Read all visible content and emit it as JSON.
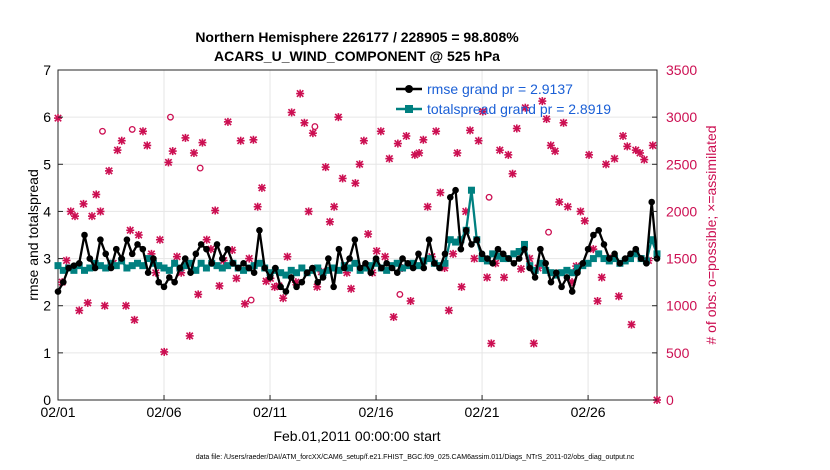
{
  "chart_data": {
    "type": "line",
    "title": "Northern Hemisphere 226177 / 228905 = 98.808%",
    "subtitle": "ACARS_U_WIND_COMPONENT @ 525 hPa",
    "xlabel": "Feb.01,2011 00:00:00 start",
    "ylabel": "rmse and totalspread",
    "ylabel_right": "# of obs: o=possible; ×=assimilated",
    "footnote": "data file: /Users/raeder/DAI/ATM_forcXX/CAM6_setup/f.e21.FHIST_BGC.f09_025.CAM6assim.011/Diags_NTrS_2011-02/obs_diag_output.nc",
    "x_ticks": [
      "02/01",
      "02/06",
      "02/11",
      "02/16",
      "02/21",
      "02/26"
    ],
    "x_tick_days": [
      0,
      5,
      10,
      15,
      20,
      25
    ],
    "xlim": [
      0,
      28.25
    ],
    "ylim": [
      0,
      7
    ],
    "y_ticks": [
      0,
      1,
      2,
      3,
      4,
      5,
      6,
      7
    ],
    "ylim_right": [
      0,
      3500
    ],
    "y_ticks_right": [
      0,
      500,
      1000,
      1500,
      2000,
      2500,
      3000,
      3500
    ],
    "grid": true,
    "legend_position": "top-right",
    "legend": [
      "rmse grand pr = 2.9137",
      "totalspread grand pr = 2.8919"
    ],
    "colors": {
      "rmse": "#000000",
      "spread": "#008080",
      "obs": "#cc0f52",
      "legend_text": "#1a5fd6",
      "grid": "#e6e6e6"
    },
    "series": [
      {
        "name": "rmse",
        "values": [
          2.3,
          2.5,
          2.8,
          2.85,
          2.9,
          3.5,
          3.0,
          2.8,
          3.4,
          3.1,
          2.8,
          3.2,
          3.0,
          3.4,
          3.1,
          3.3,
          3.2,
          2.7,
          3.0,
          2.5,
          2.4,
          2.6,
          2.5,
          2.8,
          3.0,
          2.7,
          3.1,
          3.3,
          3.2,
          2.9,
          3.3,
          3.0,
          3.2,
          2.9,
          2.8,
          2.9,
          2.8,
          2.7,
          3.6,
          2.8,
          2.6,
          2.8,
          2.4,
          2.3,
          2.6,
          2.4,
          2.5,
          2.7,
          2.8,
          2.5,
          2.6,
          3.0,
          2.4,
          3.2,
          2.8,
          3.0,
          3.4,
          2.8,
          2.9,
          2.7,
          3.0,
          2.8,
          2.9,
          2.8,
          2.7,
          3.0,
          2.9,
          2.8,
          3.1,
          2.8,
          3.4,
          2.9,
          2.8,
          3.1,
          4.3,
          4.45,
          3.2,
          3.6,
          3.3,
          3.4,
          3.1,
          3.0,
          2.9,
          3.2,
          3.1,
          3.0,
          2.9,
          3.0,
          3.2,
          2.8,
          2.6,
          3.2,
          2.9,
          2.5,
          2.7,
          2.4,
          2.6,
          2.3,
          2.7,
          2.9,
          3.2,
          3.5,
          3.6,
          3.3,
          3.0,
          3.1,
          2.9,
          3.0,
          3.1,
          3.2,
          3.0,
          2.9,
          4.2,
          3.0
        ]
      },
      {
        "name": "totalspread",
        "values": [
          2.85,
          2.75,
          2.8,
          2.75,
          2.85,
          2.75,
          2.8,
          2.9,
          2.85,
          2.8,
          2.9,
          2.85,
          2.95,
          2.8,
          2.85,
          2.9,
          2.85,
          3.0,
          2.9,
          2.85,
          2.8,
          2.75,
          2.9,
          2.8,
          2.85,
          2.9,
          2.75,
          2.9,
          2.8,
          2.9,
          2.85,
          2.8,
          2.85,
          2.9,
          2.8,
          2.75,
          2.8,
          2.85,
          2.9,
          2.8,
          2.7,
          2.75,
          2.7,
          2.65,
          2.75,
          2.7,
          2.8,
          2.7,
          2.75,
          2.8,
          2.7,
          2.75,
          2.8,
          2.75,
          2.85,
          2.8,
          2.9,
          2.75,
          2.8,
          2.85,
          2.9,
          2.8,
          2.75,
          2.85,
          2.9,
          2.8,
          2.85,
          2.9,
          2.85,
          2.95,
          3.0,
          2.9,
          2.85,
          2.9,
          3.4,
          3.35,
          3.4,
          3.6,
          4.45,
          3.4,
          3.0,
          2.95,
          3.1,
          3.05,
          3.0,
          3.0,
          3.1,
          3.15,
          3.3,
          2.85,
          2.75,
          2.9,
          2.75,
          2.7,
          2.65,
          2.7,
          2.75,
          2.7,
          2.8,
          2.85,
          2.9,
          3.0,
          3.1,
          3.0,
          2.95,
          3.0,
          2.9,
          2.95,
          3.0,
          3.1,
          3.0,
          2.95,
          3.4,
          3.1
        ]
      },
      {
        "name": "obs_assimilated",
        "values": [
          2990,
          1250,
          1480,
          2000,
          1950,
          950,
          2080,
          1030,
          1950,
          2180,
          2000,
          1000,
          2430,
          1450,
          2650,
          2750,
          1000,
          1800,
          850,
          1750,
          2850,
          2700,
          1550,
          1350,
          1700,
          510,
          2520,
          2640,
          1520,
          1350,
          2780,
          680,
          2620,
          1120,
          2730,
          1700,
          1600,
          2010,
          1210,
          1480,
          2950,
          1590,
          1290,
          2750,
          1020,
          1500,
          2760,
          2050,
          2250,
          1260,
          1290,
          1200,
          1210,
          1080,
          1520,
          3050,
          1250,
          3250,
          2940,
          2000,
          2830,
          1200,
          1360,
          2470,
          1890,
          2050,
          3000,
          2350,
          1350,
          1180,
          2300,
          2500,
          2750,
          1760,
          1350,
          1580,
          2850,
          1520,
          2560,
          880,
          2720,
          1400,
          2800,
          1050,
          2600,
          2620,
          2760,
          2050,
          1520,
          2850,
          2200,
          1400,
          950,
          1550,
          2620,
          1200,
          2000,
          2860,
          1500,
          2750,
          3060,
          1300,
          600,
          1450,
          2650,
          1300,
          2600,
          2400,
          2880,
          1390,
          3100,
          1500,
          600,
          1400,
          3170,
          2980,
          2700,
          2640,
          2100,
          2940,
          2050,
          1250,
          1420,
          2000,
          1900,
          2600,
          1600,
          1050,
          1300,
          2500,
          1500,
          2560,
          1100,
          2800,
          2690,
          800,
          2650,
          2620,
          2550,
          1480,
          2700,
          0
        ]
      },
      {
        "name": "obs_possible_only",
        "values": [
          2850,
          2870,
          3000,
          2460,
          1060,
          2900,
          1120,
          2150,
          1780
        ]
      }
    ],
    "obs_possible_only_index": [
      10,
      17,
      26,
      33,
      45,
      60,
      80,
      101,
      115
    ]
  }
}
